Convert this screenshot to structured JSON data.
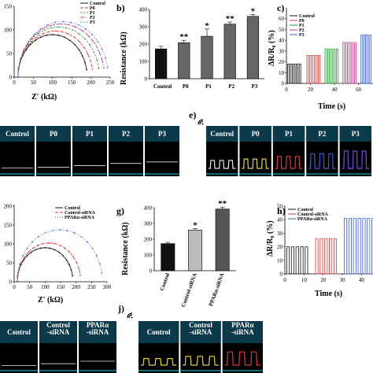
{
  "panels": {
    "a": {
      "letter": "",
      "xlabel": "Z' (kΩ)",
      "legend": [
        "Control",
        "P0",
        "P1",
        "P2",
        "P3"
      ]
    },
    "b": {
      "letter": "b)",
      "ylabel": "Resistance (kΩ)"
    },
    "c": {
      "letter": "c)",
      "ylabel": "ΔR/R₀ (%)",
      "xlabel": "Time (s)",
      "legend": [
        "Control",
        "P0",
        "P1",
        "P2",
        "P3"
      ]
    },
    "d": {
      "letter": ""
    },
    "e": {
      "letter": "e)"
    },
    "f": {
      "letter": "",
      "xlabel": "Z' (kΩ)",
      "legend": [
        "Control",
        "Control-siRNA",
        "PPARα-siRNA"
      ]
    },
    "g": {
      "letter": "g)",
      "ylabel": "Resistance (kΩ)"
    },
    "h": {
      "letter": "h)",
      "ylabel": "ΔR/R₀ (%)",
      "xlabel": "Time (s)",
      "legend": [
        "Control",
        "Control-siRNA",
        "PPARα-siRNA"
      ]
    },
    "i": {
      "letter": ""
    },
    "j": {
      "letter": "j)"
    }
  },
  "colors": {
    "control": "#111111",
    "p0": "#e03a3a",
    "p1": "#2f9a3e",
    "p2": "#c03a8a",
    "p3": "#3a5ecf",
    "siRNA_ctrl": "#e03a3a",
    "ppar": "#3a5ecf",
    "panel_bg": "#000000",
    "panel_header": "#0c3a4a",
    "panel_border": "#19a6b8"
  },
  "chart_data": [
    {
      "id": "a",
      "type": "scatter",
      "title": "",
      "xlabel": "Z' (kΩ)",
      "ylabel": "",
      "xlim": [
        0,
        250
      ],
      "ylim": [
        0,
        150
      ],
      "xticks": [
        0,
        50,
        100,
        150,
        200,
        250
      ],
      "yticks": [
        0,
        50,
        100,
        150
      ],
      "series": [
        {
          "name": "Control",
          "x0": 10,
          "x1": 190
        },
        {
          "name": "P0",
          "x0": 10,
          "x1": 205
        },
        {
          "name": "P1",
          "x0": 10,
          "x1": 222
        },
        {
          "name": "P2",
          "x0": 10,
          "x1": 235
        },
        {
          "name": "P3",
          "x0": 10,
          "x1": 245
        }
      ]
    },
    {
      "id": "b",
      "type": "bar",
      "title": "",
      "xlabel": "",
      "ylabel": "Resistance (kΩ)",
      "ylim": [
        0,
        400
      ],
      "yticks": [
        0,
        100,
        200,
        300,
        400
      ],
      "categories": [
        "Control",
        "P0",
        "P1",
        "P2",
        "P3"
      ],
      "values": [
        172,
        208,
        245,
        315,
        360
      ],
      "errors": [
        15,
        14,
        42,
        12,
        10
      ],
      "annotations": [
        "",
        "**",
        "*",
        "**",
        "*"
      ]
    },
    {
      "id": "c",
      "type": "line",
      "title": "",
      "xlabel": "Time (s)",
      "ylabel": "ΔR/R₀ (%)",
      "xlim": [
        0,
        72
      ],
      "ylim": [
        0,
        70
      ],
      "xticks": [
        0,
        20,
        40,
        60
      ],
      "yticks": [
        0,
        10,
        20,
        30,
        40,
        50,
        60
      ],
      "series": [
        {
          "name": "Control",
          "t0": 1,
          "t1": 13,
          "value": 18
        },
        {
          "name": "P0",
          "t0": 17,
          "t1": 29,
          "value": 26
        },
        {
          "name": "P1",
          "t0": 32,
          "t1": 44,
          "value": 32
        },
        {
          "name": "P2",
          "t0": 47,
          "t1": 59,
          "value": 38
        },
        {
          "name": "P3",
          "t0": 62,
          "t1": 72,
          "value": 45
        }
      ]
    },
    {
      "id": "f",
      "type": "scatter",
      "title": "",
      "xlabel": "Z' (kΩ)",
      "ylabel": "",
      "xlim": [
        0,
        300
      ],
      "ylim": [
        0,
        200
      ],
      "xticks": [
        0,
        50,
        100,
        150,
        200,
        250,
        300
      ],
      "yticks": [
        0,
        50,
        100,
        150,
        200
      ],
      "series": [
        {
          "name": "Control",
          "x0": 10,
          "x1": 190
        },
        {
          "name": "Control-siRNA",
          "x0": 10,
          "x1": 215
        },
        {
          "name": "PPARα-siRNA",
          "x0": 10,
          "x1": 285
        }
      ]
    },
    {
      "id": "g",
      "type": "bar",
      "title": "",
      "xlabel": "",
      "ylabel": "Resistance (kΩ)",
      "ylim": [
        0,
        400
      ],
      "yticks": [
        0,
        100,
        200,
        300,
        400
      ],
      "categories": [
        "Control",
        "Control-siRNA",
        "PPARα-siRNA"
      ],
      "values": [
        172,
        258,
        392
      ],
      "errors": [
        8,
        10,
        12
      ],
      "annotations": [
        "",
        "*",
        "**"
      ]
    },
    {
      "id": "h",
      "type": "line",
      "title": "",
      "xlabel": "Time (s)",
      "ylabel": "ΔR/R₀ (%)",
      "xlim": [
        0,
        46
      ],
      "ylim": [
        0,
        50
      ],
      "xticks": [
        0,
        10,
        20,
        30,
        40
      ],
      "yticks": [
        0,
        10,
        20,
        30,
        40,
        50
      ],
      "series": [
        {
          "name": "Control",
          "t0": 1,
          "t1": 13,
          "value": 20
        },
        {
          "name": "Control-siRNA",
          "t0": 16,
          "t1": 28,
          "value": 26
        },
        {
          "name": "PPARα-siRNA",
          "t0": 31,
          "t1": 46,
          "value": 41
        }
      ]
    },
    {
      "id": "d",
      "type": "table",
      "title": "",
      "headers": [
        "Control",
        "P0",
        "P1",
        "P2",
        "P3"
      ],
      "line_level": [
        0.4,
        0.45,
        0.55,
        0.7,
        0.8
      ]
    },
    {
      "id": "e",
      "type": "table",
      "title": "",
      "headers": [
        "Control",
        "P0",
        "P1",
        "P2",
        "P3"
      ],
      "pulse_amplitude": [
        0.3,
        0.35,
        0.45,
        0.55,
        0.65
      ]
    },
    {
      "id": "i",
      "type": "table",
      "title": "",
      "headers": [
        "Control",
        "Control\n-siRNA",
        "PPARα\n-siRNA"
      ],
      "line_level": [
        0.4,
        0.55,
        0.75
      ]
    },
    {
      "id": "j",
      "type": "table",
      "title": "",
      "headers": [
        "Control",
        "Control\n-siRNA",
        "PPARα\n-siRNA"
      ],
      "pulse_amplitude": [
        0.3,
        0.4,
        0.6
      ]
    }
  ]
}
